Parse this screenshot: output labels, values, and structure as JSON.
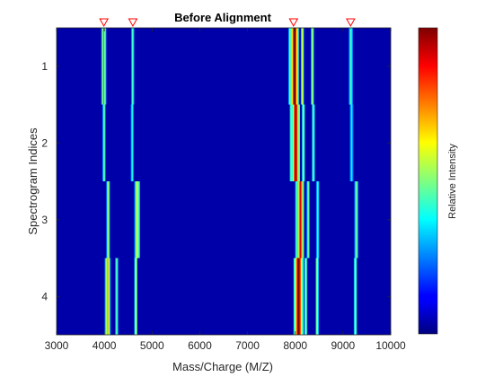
{
  "chart_data": {
    "type": "heatmap",
    "title": "Before Alignment",
    "xlabel": "Mass/Charge (M/Z)",
    "ylabel": "Spectrogram Indices",
    "colorbar_label": "Relative Intensity",
    "colormap": "jet",
    "xlim": [
      3000,
      10000
    ],
    "x_ticks": [
      3000,
      4000,
      5000,
      6000,
      7000,
      8000,
      9000,
      10000
    ],
    "y_ticks": [
      1,
      2,
      3,
      4
    ],
    "reference_markers_mz": [
      3991,
      4598,
      7964,
      9160
    ],
    "marker_color": "#ff0000",
    "background_color": "#0000a8",
    "rows": [
      {
        "index": 1,
        "peaks": [
          {
            "mz": 3970,
            "width": 22,
            "intensity": 0.55
          },
          {
            "mz": 4010,
            "width": 18,
            "intensity": 0.5
          },
          {
            "mz": 4595,
            "width": 18,
            "intensity": 0.45
          },
          {
            "mz": 7890,
            "width": 20,
            "intensity": 0.55
          },
          {
            "mz": 7985,
            "width": 60,
            "intensity": 1.0
          },
          {
            "mz": 8150,
            "width": 22,
            "intensity": 0.6
          },
          {
            "mz": 8360,
            "width": 22,
            "intensity": 0.55
          },
          {
            "mz": 9165,
            "width": 30,
            "intensity": 0.45
          }
        ]
      },
      {
        "index": 2,
        "peaks": [
          {
            "mz": 3995,
            "width": 22,
            "intensity": 0.5
          },
          {
            "mz": 4585,
            "width": 18,
            "intensity": 0.4
          },
          {
            "mz": 7915,
            "width": 20,
            "intensity": 0.5
          },
          {
            "mz": 8010,
            "width": 60,
            "intensity": 0.98
          },
          {
            "mz": 8170,
            "width": 20,
            "intensity": 0.55
          },
          {
            "mz": 8380,
            "width": 20,
            "intensity": 0.5
          },
          {
            "mz": 9180,
            "width": 26,
            "intensity": 0.38
          }
        ]
      },
      {
        "index": 3,
        "peaks": [
          {
            "mz": 4080,
            "width": 26,
            "intensity": 0.55
          },
          {
            "mz": 4690,
            "width": 40,
            "intensity": 0.62
          },
          {
            "mz": 8030,
            "width": 20,
            "intensity": 0.5
          },
          {
            "mz": 8110,
            "width": 50,
            "intensity": 0.9
          },
          {
            "mz": 8270,
            "width": 20,
            "intensity": 0.5
          },
          {
            "mz": 8470,
            "width": 18,
            "intensity": 0.45
          },
          {
            "mz": 9280,
            "width": 28,
            "intensity": 0.5
          }
        ]
      },
      {
        "index": 4,
        "peaks": [
          {
            "mz": 4070,
            "width": 40,
            "intensity": 0.72
          },
          {
            "mz": 4260,
            "width": 16,
            "intensity": 0.48
          },
          {
            "mz": 4660,
            "width": 20,
            "intensity": 0.6
          },
          {
            "mz": 8070,
            "width": 70,
            "intensity": 1.0
          },
          {
            "mz": 8220,
            "width": 22,
            "intensity": 0.55
          },
          {
            "mz": 8460,
            "width": 20,
            "intensity": 0.58
          },
          {
            "mz": 9260,
            "width": 22,
            "intensity": 0.55
          }
        ]
      }
    ]
  }
}
